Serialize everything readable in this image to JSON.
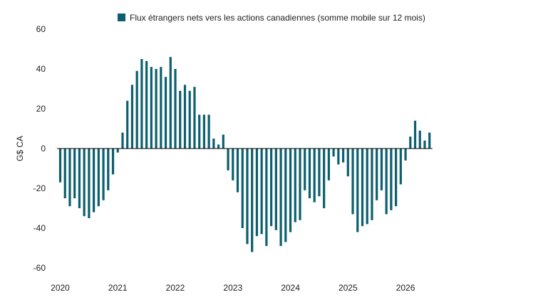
{
  "chart_data": {
    "type": "bar",
    "legend": {
      "label": "Flux étrangers nets vers les actions canadiennes (somme mobile sur 12 mois)",
      "position": "top"
    },
    "ylabel": "G$ CA",
    "xlabel": "",
    "ylim": [
      -60,
      60
    ],
    "y_ticks": [
      "60",
      "40",
      "20",
      "0",
      "-20",
      "-40",
      "-60"
    ],
    "x_tick_labels": [
      "2020",
      "2021",
      "2022",
      "2023",
      "2024",
      "2025",
      "2026"
    ],
    "x_start_year": 2020,
    "months_per_year": 12,
    "grid": false,
    "color": "#0b5f6e",
    "series": [
      {
        "name": "Flux étrangers nets vers les actions canadiennes (somme mobile sur 12 mois)",
        "values": [
          -17,
          -25,
          -29,
          -25,
          -30,
          -34,
          -35,
          -32,
          -29,
          -26,
          -21,
          -13,
          -2,
          8,
          24,
          32,
          39,
          45,
          44,
          41,
          40,
          41,
          36,
          46,
          40,
          29,
          32,
          29,
          31,
          17,
          17,
          17,
          5,
          2,
          7,
          -11,
          -16,
          -22,
          -40,
          -48,
          -52,
          -44,
          -43,
          -49,
          -39,
          -41,
          -49,
          -47,
          -42,
          -37,
          -36,
          -21,
          -25,
          -27,
          -24,
          -30,
          -16,
          -4,
          -8,
          -7,
          -14,
          -33,
          -42,
          -39,
          -38,
          -36,
          -26,
          -21,
          -33,
          -31,
          -29,
          -18,
          -6,
          6,
          14,
          9,
          4,
          8
        ]
      }
    ]
  }
}
